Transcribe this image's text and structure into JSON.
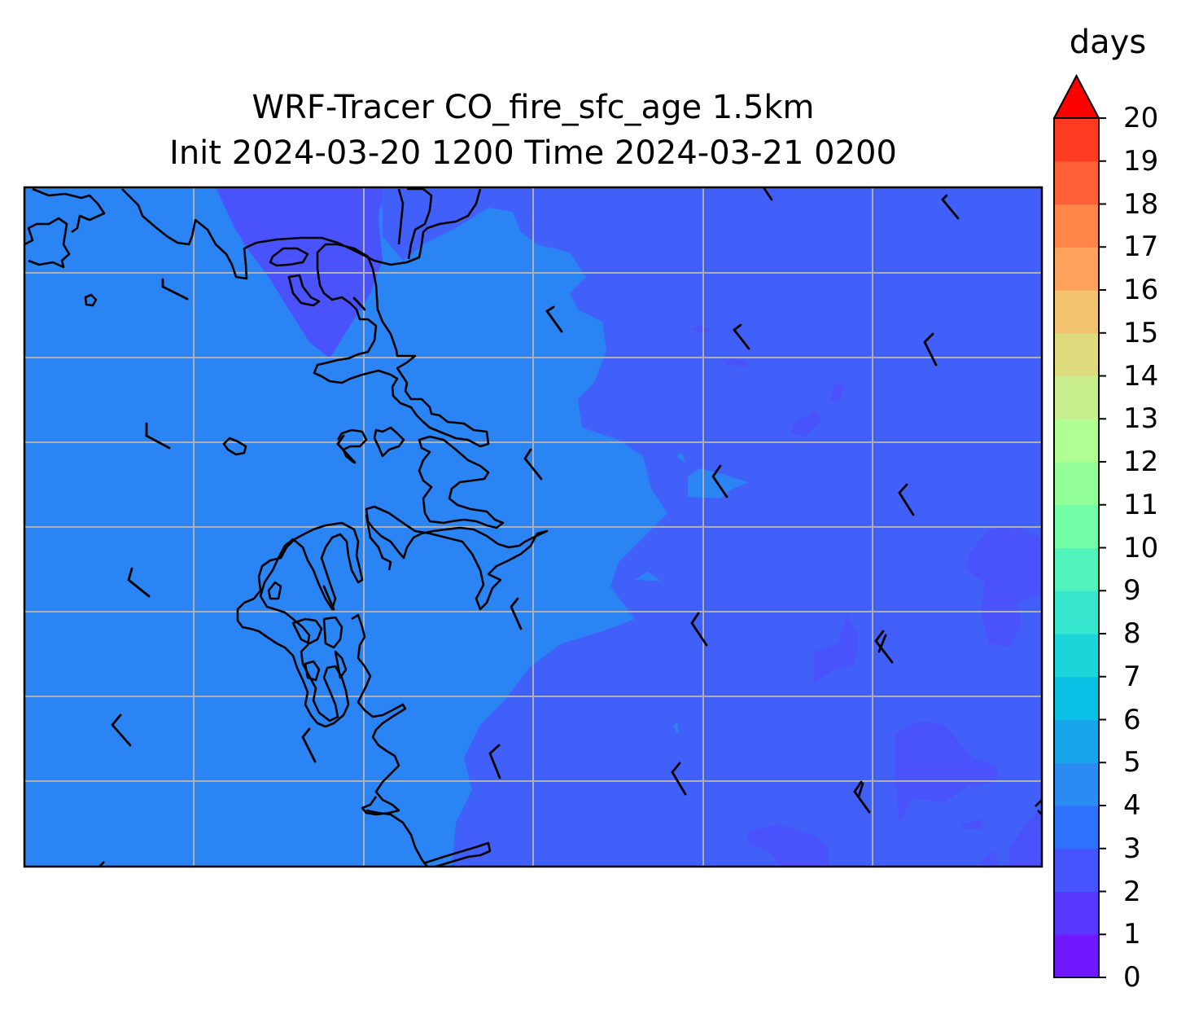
{
  "title": {
    "line1": "WRF-Tracer CO_fire_sfc_age 1.5km",
    "line2": "Init 2024-03-20 1200 Time 2024-03-21 0200"
  },
  "colorbar": {
    "label": "days",
    "ticks": [
      "0",
      "1",
      "2",
      "3",
      "4",
      "5",
      "6",
      "7",
      "8",
      "9",
      "10",
      "11",
      "12",
      "13",
      "14",
      "15",
      "16",
      "17",
      "18",
      "19",
      "20"
    ],
    "colors": [
      "#7018ff",
      "#5a37ff",
      "#4554ff",
      "#2e71fb",
      "#2a8bf3",
      "#19a5eb",
      "#0ac0e5",
      "#1bd5da",
      "#36e6cd",
      "#52f4be",
      "#72fca6",
      "#91fe98",
      "#afff93",
      "#c8ee8d",
      "#dddb7e",
      "#f2c36f",
      "#fca25c",
      "#ff8548",
      "#ff6035",
      "#ff3b22",
      "#ff140d"
    ],
    "extend_color": "#ff0000"
  },
  "map": {
    "fill_colors": {
      "land_3_4": "#2a84f3",
      "sea_2_3": "#4060f9",
      "patch_1_2": "#5843ff",
      "patch_4_5": "#2a95f0"
    },
    "wind_barbs": 34
  }
}
